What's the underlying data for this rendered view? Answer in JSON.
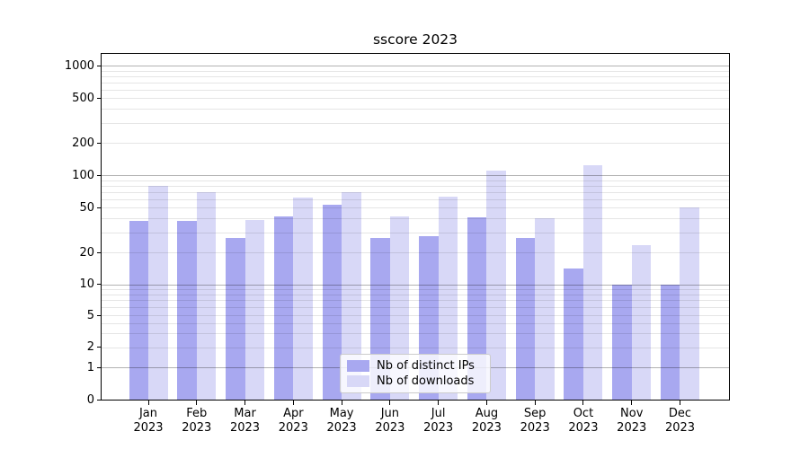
{
  "chart_data": {
    "type": "bar",
    "title": "sscore 2023",
    "xlabel": "",
    "ylabel": "",
    "categories": [
      "Jan",
      "Feb",
      "Mar",
      "Apr",
      "May",
      "Jun",
      "Jul",
      "Aug",
      "Sep",
      "Oct",
      "Nov",
      "Dec"
    ],
    "x_tick_year": "2023",
    "series": [
      {
        "name": "Nb of distinct IPs",
        "color": "#a8a8f0",
        "values": [
          38,
          38,
          27,
          42,
          53,
          27,
          28,
          41,
          27,
          14,
          10,
          10
        ]
      },
      {
        "name": "Nb of downloads",
        "color": "#d8d8f7",
        "values": [
          80,
          69,
          39,
          62,
          70,
          42,
          63,
          110,
          40,
          125,
          23,
          50
        ]
      }
    ],
    "y_axis": {
      "scale": "symlog",
      "ylim": [
        0,
        1300
      ],
      "tick_values": [
        0,
        1,
        2,
        5,
        10,
        20,
        50,
        100,
        200,
        500,
        1000
      ],
      "tick_labels": [
        "0",
        "1",
        "2",
        "5",
        "10",
        "20",
        "50",
        "100",
        "200",
        "500",
        "1000"
      ],
      "major_gridlines": [
        1,
        10,
        100,
        1000
      ],
      "minor_gridlines": [
        2,
        3,
        4,
        5,
        6,
        7,
        8,
        9,
        20,
        30,
        40,
        50,
        60,
        70,
        80,
        90,
        200,
        300,
        400,
        500,
        600,
        700,
        800,
        900
      ]
    },
    "legend": {
      "position": "lower center",
      "entries": [
        "Nb of distinct IPs",
        "Nb of downloads"
      ]
    },
    "grid": {
      "major": true,
      "minor": true,
      "drawn_over_bars": true
    }
  },
  "colors": {
    "bar_distinct_ips": "#a8a8f0",
    "bar_downloads": "#d8d8f7",
    "major_grid": "rgba(0,0,0,0.30)",
    "minor_grid": "rgba(0,0,0,0.10)",
    "axis": "#000000",
    "background": "#ffffff",
    "legend_border": "#cccccc"
  }
}
